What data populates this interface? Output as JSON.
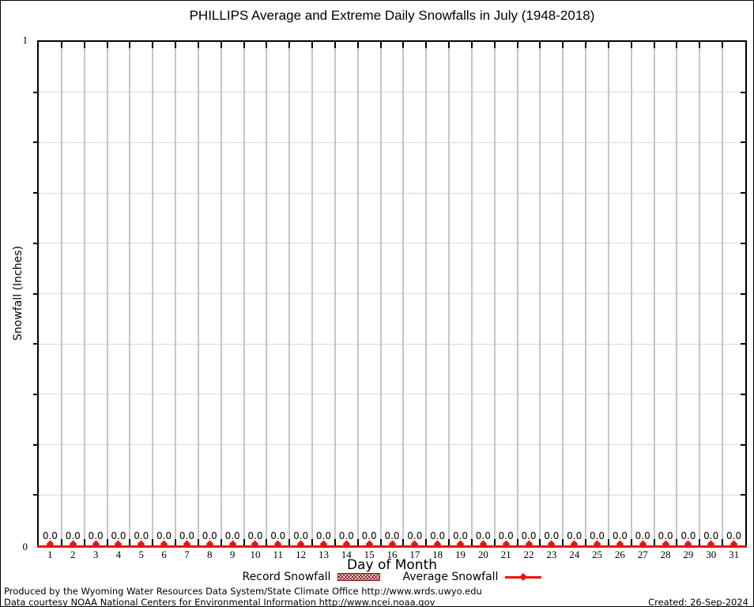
{
  "chart_data": {
    "type": "line",
    "title": "PHILLIPS Average and Extreme Daily Snowfalls in July (1948-2018)",
    "xlabel": "Day of Month",
    "ylabel": "Snowfall (Inches)",
    "x": [
      1,
      2,
      3,
      4,
      5,
      6,
      7,
      8,
      9,
      10,
      11,
      12,
      13,
      14,
      15,
      16,
      17,
      18,
      19,
      20,
      21,
      22,
      23,
      24,
      25,
      26,
      27,
      28,
      29,
      30,
      31
    ],
    "xlim": [
      0.5,
      31.5
    ],
    "ylim": [
      0,
      1
    ],
    "yticks": [
      {
        "value": 0,
        "label": "0"
      },
      {
        "value": 1,
        "label": "1"
      }
    ],
    "minor_ytick_interval": 0.1,
    "grid": true,
    "legend_position": "bottom-center",
    "series": [
      {
        "name": "Record Snowfall",
        "type": "bar",
        "color": "#8b1a1a",
        "values": [
          0,
          0,
          0,
          0,
          0,
          0,
          0,
          0,
          0,
          0,
          0,
          0,
          0,
          0,
          0,
          0,
          0,
          0,
          0,
          0,
          0,
          0,
          0,
          0,
          0,
          0,
          0,
          0,
          0,
          0,
          0
        ]
      },
      {
        "name": "Average Snowfall",
        "type": "line",
        "color": "#ee1111",
        "values": [
          0,
          0,
          0,
          0,
          0,
          0,
          0,
          0,
          0,
          0,
          0,
          0,
          0,
          0,
          0,
          0,
          0,
          0,
          0,
          0,
          0,
          0,
          0,
          0,
          0,
          0,
          0,
          0,
          0,
          0,
          0
        ]
      }
    ],
    "point_labels": [
      "0.0",
      "0.0",
      "0.0",
      "0.0",
      "0.0",
      "0.0",
      "0.0",
      "0.0",
      "0.0",
      "0.0",
      "0.0",
      "0.0",
      "0.0",
      "0.0",
      "0.0",
      "0.0",
      "0.0",
      "0.0",
      "0.0",
      "0.0",
      "0.0",
      "0.0",
      "0.0",
      "0.0",
      "0.0",
      "0.0",
      "0.0",
      "0.0",
      "0.0",
      "0.0",
      "0.0"
    ]
  },
  "footer": {
    "line1": "Produced by the Wyoming Water Resources Data System/State Climate Office http://www.wrds.uwyo.edu",
    "line2": "Data courtesy NOAA National Centers for Environmental Information http://www.ncei.noaa.gov",
    "created": "Created: 26-Sep-2024"
  },
  "colors": {
    "average_line": "#ee1111",
    "record_fill": "#8b1a1a",
    "grid_major": "#c6c6c6",
    "grid_minor": "#b5b5b5",
    "axis": "#000000"
  }
}
